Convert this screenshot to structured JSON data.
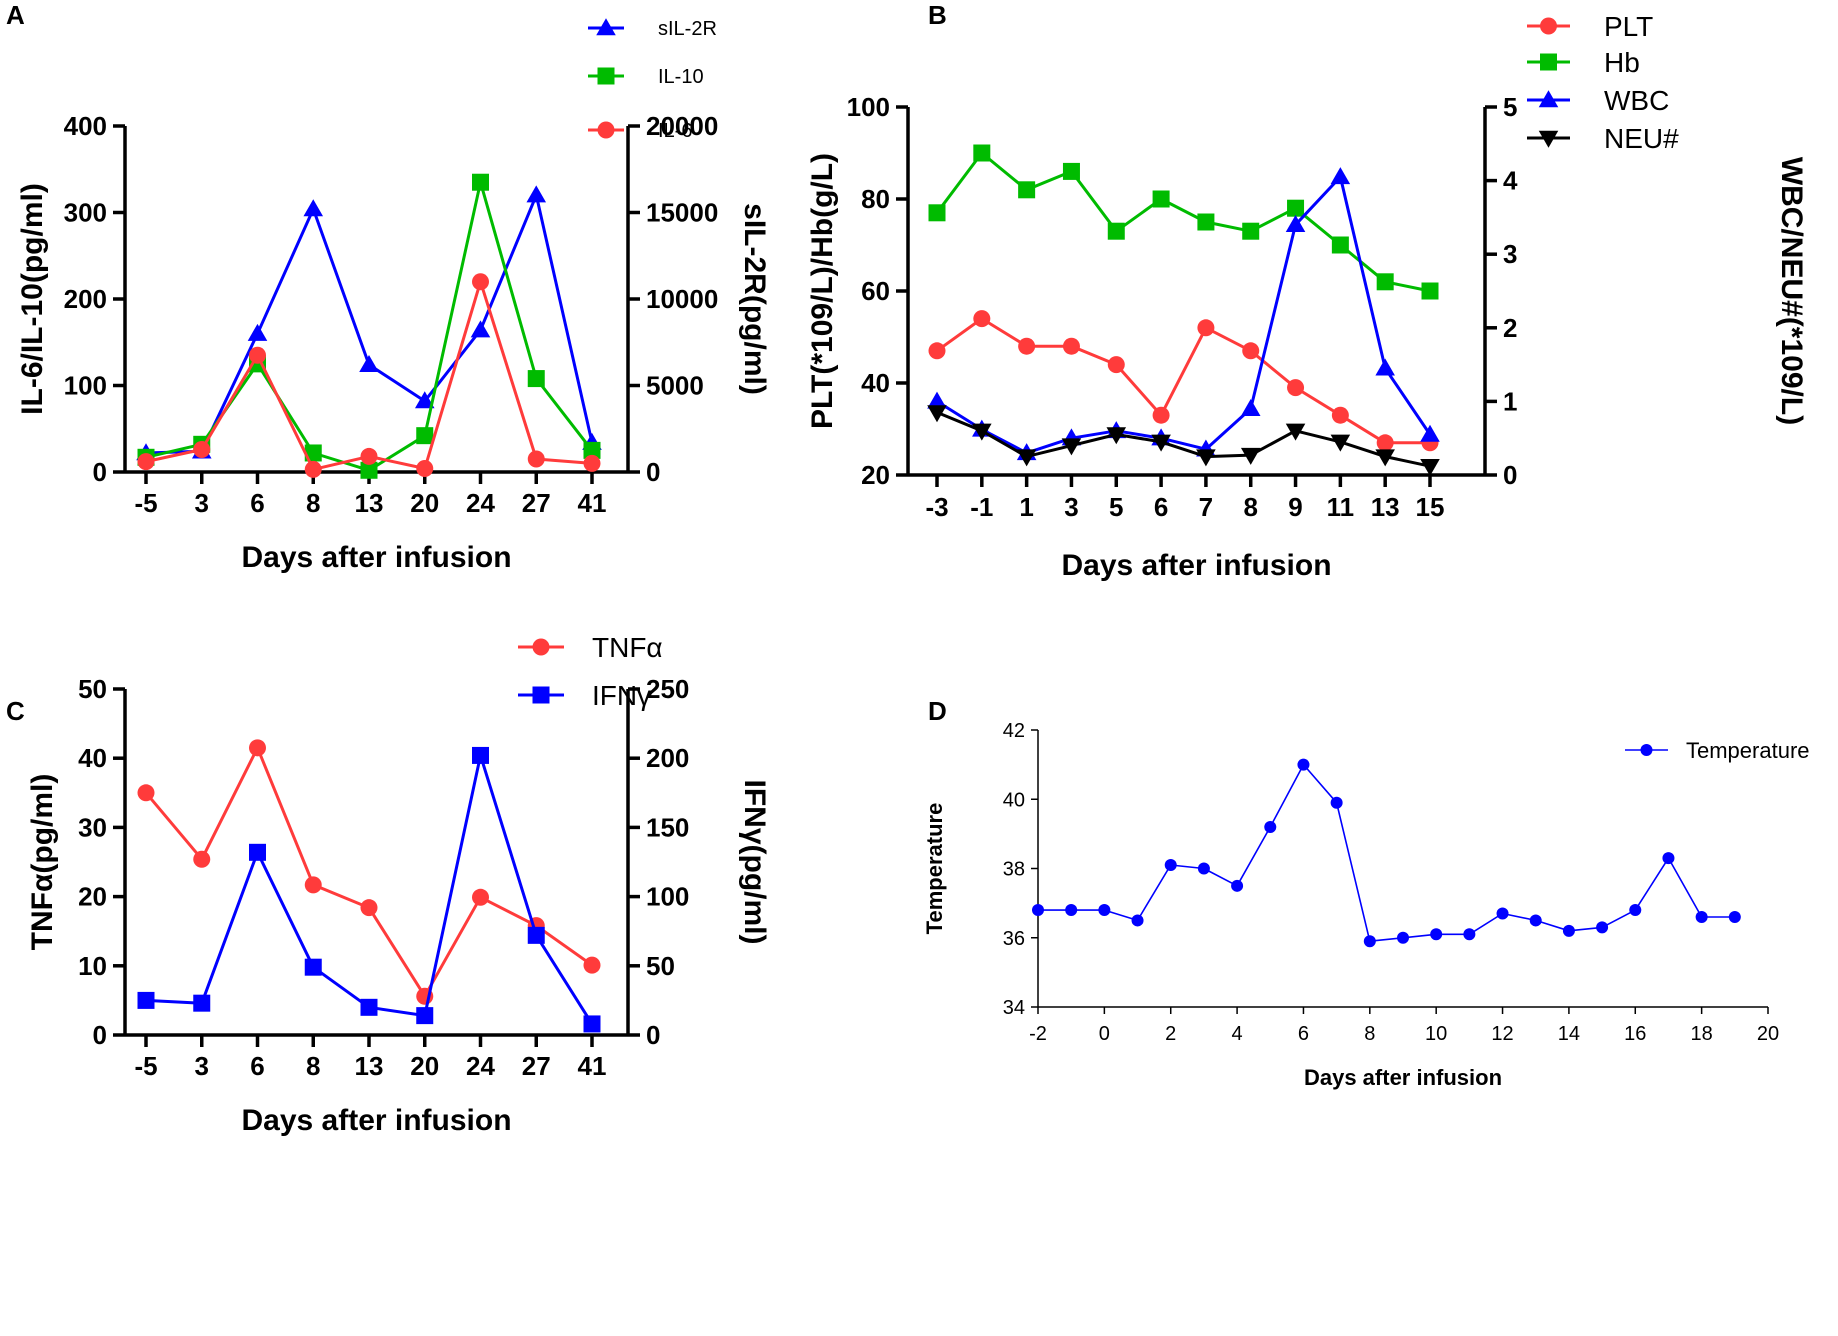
{
  "chart_data": [
    {
      "panel": "A",
      "type": "line",
      "categories": [
        "-5",
        "3",
        "6",
        "8",
        "13",
        "20",
        "24",
        "27",
        "41"
      ],
      "xlabel": "Days after infusion",
      "ylabel": "IL-6/IL-10(pg/ml)",
      "ylabel_right": "sIL-2R(pg/ml)",
      "ylim": [
        0,
        400
      ],
      "ylim_right": [
        0,
        20000
      ],
      "yticks": [
        0,
        100,
        200,
        300,
        400
      ],
      "yticks_right": [
        0,
        5000,
        10000,
        15000,
        20000
      ],
      "series": [
        {
          "name": "sIL-2R",
          "axis": "right",
          "color": "#0000ff",
          "marker": "triangle",
          "values": [
            1100,
            1200,
            8000,
            15200,
            6200,
            4100,
            8200,
            16000,
            1700
          ]
        },
        {
          "name": "IL-10",
          "axis": "left",
          "color": "#00bb00",
          "marker": "square",
          "values": [
            17,
            32,
            125,
            22,
            2,
            42,
            335,
            108,
            25
          ]
        },
        {
          "name": "IL-6",
          "axis": "left",
          "color": "#ff3b3b",
          "marker": "circle",
          "values": [
            12,
            26,
            135,
            3,
            18,
            4,
            220,
            15,
            10
          ]
        }
      ]
    },
    {
      "panel": "B",
      "type": "line",
      "categories": [
        "-3",
        "-1",
        "1",
        "3",
        "5",
        "6",
        "7",
        "8",
        "9",
        "11",
        "13",
        "15"
      ],
      "xlabel": "Days after infusion",
      "ylabel": "PLT(*109/L)/Hb(g/L)",
      "ylabel_right": "WBC/NEU#(*109/L)",
      "ylim": [
        20,
        100
      ],
      "ylim_right": [
        0,
        5
      ],
      "yticks": [
        20,
        40,
        60,
        80,
        100
      ],
      "yticks_right": [
        0,
        1,
        2,
        3,
        4,
        5
      ],
      "series": [
        {
          "name": "PLT",
          "axis": "left",
          "color": "#ff3b3b",
          "marker": "circle",
          "values": [
            47,
            54,
            48,
            48,
            44,
            33,
            52,
            47,
            39,
            33,
            27,
            27
          ]
        },
        {
          "name": "Hb",
          "axis": "left",
          "color": "#00bb00",
          "marker": "square",
          "values": [
            77,
            90,
            82,
            86,
            73,
            80,
            75,
            73,
            78,
            70,
            62,
            60
          ]
        },
        {
          "name": "WBC",
          "axis": "right",
          "color": "#0000ff",
          "marker": "triangle",
          "values": [
            1.0,
            0.62,
            0.3,
            0.5,
            0.6,
            0.5,
            0.35,
            0.9,
            3.4,
            4.05,
            1.45,
            0.55
          ]
        },
        {
          "name": "NEU#",
          "axis": "right",
          "color": "#000000",
          "marker": "triangle-down",
          "values": [
            0.85,
            0.6,
            0.25,
            0.4,
            0.55,
            0.45,
            0.25,
            0.27,
            0.6,
            0.45,
            0.25,
            0.12
          ]
        }
      ]
    },
    {
      "panel": "C",
      "type": "line",
      "categories": [
        "-5",
        "3",
        "6",
        "8",
        "13",
        "20",
        "24",
        "27",
        "41"
      ],
      "xlabel": "Days after infusion",
      "ylabel": "TNFα(pg/ml)",
      "ylabel_right": "IFNγ(pg/ml)",
      "ylim": [
        0,
        50
      ],
      "ylim_right": [
        0,
        250
      ],
      "yticks": [
        0,
        10,
        20,
        30,
        40,
        50
      ],
      "yticks_right": [
        0,
        50,
        100,
        150,
        200,
        250
      ],
      "series": [
        {
          "name": "TNFα",
          "axis": "left",
          "color": "#ff3b3b",
          "marker": "circle",
          "values": [
            35,
            25.4,
            41.5,
            21.7,
            18.4,
            5.6,
            19.9,
            15.8,
            10.1
          ]
        },
        {
          "name": "IFNγ",
          "axis": "right",
          "color": "#0000ff",
          "marker": "square",
          "values": [
            25,
            23,
            132,
            49,
            20,
            14,
            202,
            72,
            8
          ]
        }
      ]
    },
    {
      "panel": "D",
      "type": "line",
      "x": [
        -2,
        -1,
        0,
        1,
        2,
        3,
        4,
        5,
        6,
        7,
        8,
        9,
        10,
        11,
        12,
        13,
        14,
        15,
        16,
        17,
        18,
        19
      ],
      "xlabel": "Days after infusion",
      "ylabel": "Temperature",
      "xlim": [
        -2,
        20
      ],
      "ylim": [
        34,
        42
      ],
      "xticks": [
        -2,
        0,
        2,
        4,
        6,
        8,
        10,
        12,
        14,
        16,
        18,
        20
      ],
      "yticks": [
        34,
        36,
        38,
        40,
        42
      ],
      "series": [
        {
          "name": "Temperature",
          "color": "#0000ff",
          "marker": "circle",
          "values": [
            36.8,
            36.8,
            36.8,
            36.5,
            38.1,
            38.0,
            37.5,
            39.2,
            41.0,
            39.9,
            35.9,
            36.0,
            36.1,
            36.1,
            36.7,
            36.5,
            36.2,
            36.3,
            36.8,
            38.3,
            36.6,
            36.6
          ]
        }
      ]
    }
  ]
}
